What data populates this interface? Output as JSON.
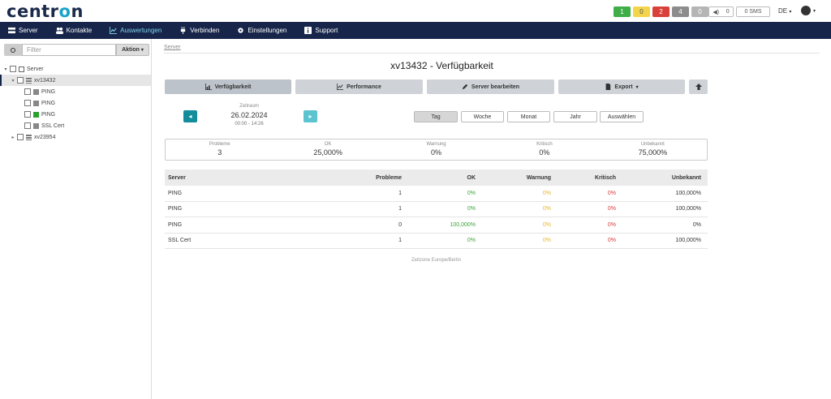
{
  "app": {
    "logo_prefix": "centr",
    "logo_o": "o",
    "logo_suffix": "n"
  },
  "status": {
    "badges": [
      {
        "value": "1",
        "color": "#3fae49"
      },
      {
        "value": "0",
        "color": "#f2d54c"
      },
      {
        "value": "2",
        "color": "#d9403a"
      },
      {
        "value": "4",
        "color": "#8c8c8c"
      },
      {
        "value": "0",
        "color": "#b5b5b5"
      }
    ],
    "sound_count": "0",
    "sms": "0 SMS",
    "language": "DE"
  },
  "nav": {
    "items": [
      {
        "label": "Server",
        "icon": "server-icon",
        "active": false
      },
      {
        "label": "Kontakte",
        "icon": "users-icon",
        "active": false
      },
      {
        "label": "Auswertungen",
        "icon": "chart-icon",
        "active": true
      },
      {
        "label": "Verbinden",
        "icon": "plug-icon",
        "active": false
      },
      {
        "label": "Einstellungen",
        "icon": "gear-icon",
        "active": false
      },
      {
        "label": "Support",
        "icon": "info-icon",
        "active": false
      }
    ]
  },
  "sidebar": {
    "filter_placeholder": "Filter",
    "aktion_label": "Aktion",
    "tree": [
      {
        "label": "Server",
        "level": 0,
        "toggle": "▾",
        "icon": "network-icon"
      },
      {
        "label": "xv13432",
        "level": 1,
        "toggle": "▾",
        "icon": "server-icon",
        "selected": true
      },
      {
        "label": "PING",
        "level": 2,
        "toggle": "",
        "icon": "grey"
      },
      {
        "label": "PING",
        "level": 2,
        "toggle": "",
        "icon": "grey"
      },
      {
        "label": "PING",
        "level": 2,
        "toggle": "",
        "icon": "green"
      },
      {
        "label": "SSL Cert",
        "level": 2,
        "toggle": "",
        "icon": "grey"
      },
      {
        "label": "xv23954",
        "level": 1,
        "toggle": "▸",
        "icon": "server-icon"
      }
    ]
  },
  "main": {
    "breadcrumb": "Server",
    "title": "xv13432 - Verfügbarkeit",
    "buttons": {
      "verfuegbarkeit": "Verfügbarkeit",
      "performance": "Performance",
      "server_bearbeiten": "Server bearbeiten",
      "export": "Export"
    },
    "zeitraum": {
      "label": "Zeitraum",
      "date": "26.02.2024",
      "time": "00:00 - 14:26"
    },
    "periods": [
      "Tag",
      "Woche",
      "Monat",
      "Jahr",
      "Auswählen"
    ],
    "summary": [
      {
        "label": "Probleme",
        "value": "3"
      },
      {
        "label": "OK",
        "value": "25,000%"
      },
      {
        "label": "Warnung",
        "value": "0%"
      },
      {
        "label": "Kritisch",
        "value": "0%"
      },
      {
        "label": "Unbekannt",
        "value": "75,000%"
      }
    ],
    "table": {
      "headers": [
        "Server",
        "Probleme",
        "OK",
        "Warnung",
        "Kritisch",
        "Unbekannt"
      ],
      "rows": [
        [
          "PING",
          "1",
          "0%",
          "0%",
          "0%",
          "100,000%"
        ],
        [
          "PING",
          "1",
          "0%",
          "0%",
          "0%",
          "100,000%"
        ],
        [
          "PING",
          "0",
          "100,000%",
          "0%",
          "0%",
          "0%"
        ],
        [
          "SSL Cert",
          "1",
          "0%",
          "0%",
          "0%",
          "100,000%"
        ]
      ]
    },
    "timezone": "Zeitzone Europe/Berlin"
  }
}
